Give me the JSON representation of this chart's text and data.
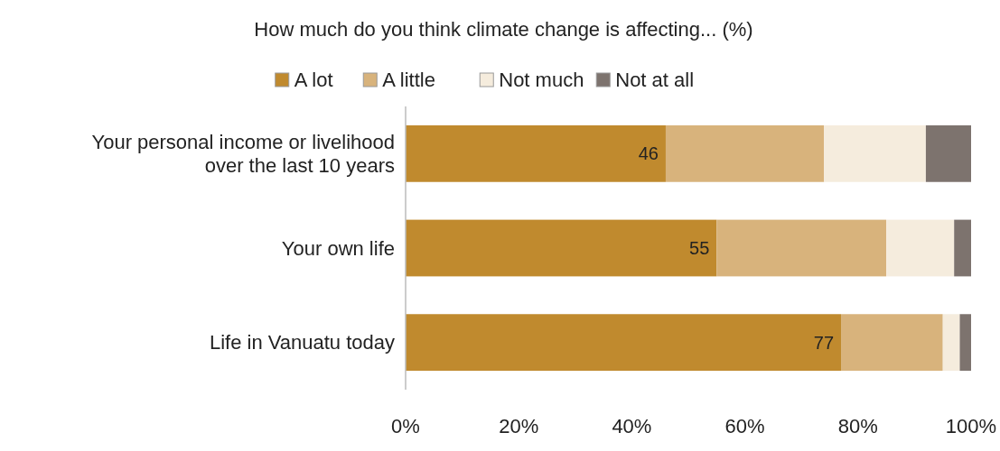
{
  "chart_data": {
    "type": "bar",
    "orientation": "horizontal",
    "stacked": true,
    "title": "How much do you think climate change is affecting... (%)",
    "categories": [
      "Your personal income or livelihood over the last 10 years",
      "Your own life",
      "Life in Vanuatu today"
    ],
    "series": [
      {
        "name": "A lot",
        "color": "#c08a2e",
        "values": [
          46,
          55,
          77
        ],
        "value_labels": [
          "46",
          "55",
          "77"
        ]
      },
      {
        "name": "A little",
        "color": "#d8b37c",
        "values": [
          28,
          30,
          18
        ]
      },
      {
        "name": "Not much",
        "color": "#f5ecdd",
        "values": [
          18,
          12,
          3
        ]
      },
      {
        "name": "Not at all",
        "color": "#7d736e",
        "values": [
          8,
          3,
          2
        ]
      }
    ],
    "xlim": [
      0,
      100
    ],
    "xticks": [
      {
        "value": 0,
        "label": "0%"
      },
      {
        "value": 20,
        "label": "20%"
      },
      {
        "value": 40,
        "label": "40%"
      },
      {
        "value": 60,
        "label": "60%"
      },
      {
        "value": 80,
        "label": "80%"
      },
      {
        "value": 100,
        "label": "100%"
      }
    ],
    "grid": false,
    "legend": "top"
  }
}
